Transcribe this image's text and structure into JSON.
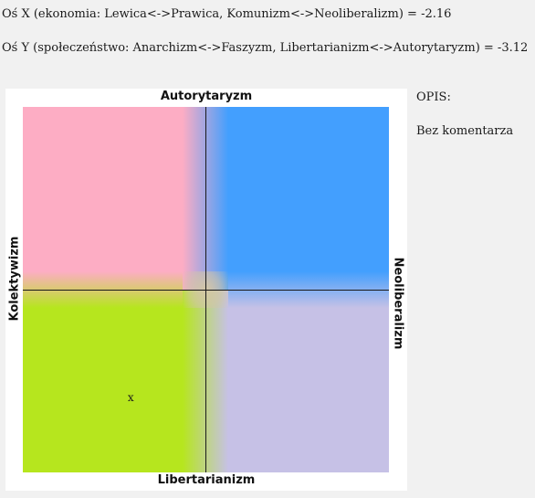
{
  "axes": {
    "x_line": "Oś X (ekonomia: Lewica<->Prawica, Komunizm<->Neoliberalizm) = -2.16",
    "y_line": "Oś Y (społeczeństwo: Anarchizm<->Faszyzm, Libertarianizm<->Autorytaryzm) = -3.12"
  },
  "compass": {
    "labels": {
      "top": "Autorytaryzm",
      "bottom": "Libertarianizm",
      "left": "Kolektywizm",
      "right": "Neoliberalizm"
    },
    "quadrant_colors": {
      "top_left": "#fdadc4",
      "top_right": "#439ffe",
      "bottom_left": "#b6e61e",
      "bottom_right": "#c6c1e6"
    },
    "marker_symbol": "x",
    "position": {
      "x": -2.16,
      "y": -3.12
    },
    "range": [
      -5.3,
      5.3
    ]
  },
  "description": {
    "heading": "OPIS:",
    "text": "Bez komentarza"
  }
}
